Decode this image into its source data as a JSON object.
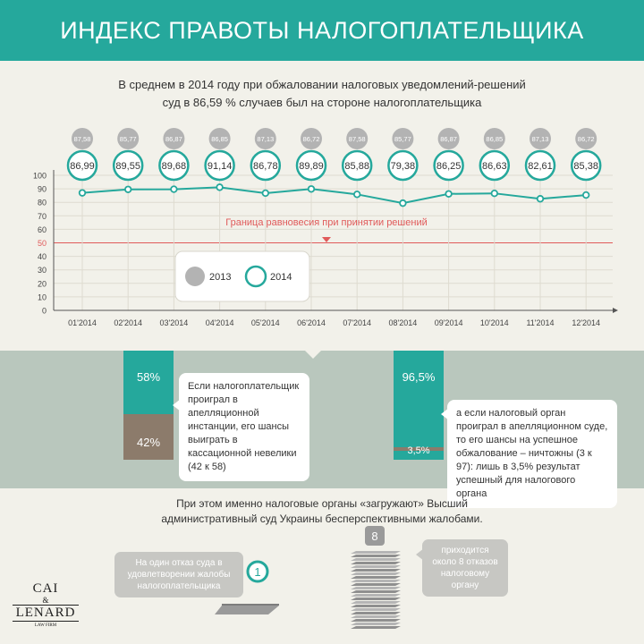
{
  "header": {
    "title": "ИНДЕКС ПРАВОТЫ НАЛОГОПЛАТЕЛЬЩИКА"
  },
  "subtitle": {
    "line1": "В среднем в 2014 году при обжаловании налоговых уведомлений-решений",
    "line2": "суд в 86,59 % случаев был на стороне налогоплательщика"
  },
  "colors": {
    "teal": "#25a89c",
    "gray": "#b3b3b3",
    "red": "#e05a5a",
    "brown": "#8c7b6b",
    "band": "#b9c7bd"
  },
  "chart_data": {
    "type": "line",
    "categories": [
      "01'2014",
      "02'2014",
      "03'2014",
      "04'2014",
      "05'2014",
      "06'2014",
      "07'2014",
      "08'2014",
      "09'2014",
      "10'2014",
      "11'2014",
      "12'2014"
    ],
    "series": [
      {
        "name": "2013",
        "labels": [
          "87,58",
          "85,77",
          "86,87",
          "86,85",
          "87,13",
          "86,72",
          "87,58",
          "85,77",
          "86,87",
          "86,85",
          "87,13",
          "86,72"
        ]
      },
      {
        "name": "2014",
        "values": [
          86.99,
          89.55,
          89.68,
          91.14,
          86.78,
          89.89,
          85.88,
          79.38,
          86.25,
          86.63,
          82.61,
          85.38
        ],
        "labels": [
          "86,99",
          "89,55",
          "89,68",
          "91,14",
          "86,78",
          "89,89",
          "85,88",
          "79,38",
          "86,25",
          "86,63",
          "82,61",
          "85,38"
        ]
      }
    ],
    "yticks": [
      "0",
      "10",
      "20",
      "30",
      "40",
      "50",
      "60",
      "70",
      "80",
      "90",
      "100"
    ],
    "ylim": [
      0,
      100
    ],
    "threshold": {
      "value": 50,
      "label": "Граница равновесия при принятии решений"
    },
    "legend": [
      "2013",
      "2014"
    ],
    "grid": true
  },
  "left_block": {
    "top_label": "58%",
    "top_value": 58,
    "bottom_label": "42%",
    "bottom_value": 42,
    "note": "Если налогоплательщик проиграл в апелляционной инстанции, его шансы выиграть в кассационной невелики (42 к 58)"
  },
  "right_block": {
    "top_label": "96,5%",
    "top_value": 96.5,
    "bottom_label": "3,5%",
    "bottom_value": 3.5,
    "note": "а если налоговый орган проиграл в апелляционном суде, то его шансы на успешное обжалование – ничтожны (3 к 97): лишь в 3,5% результат успешный для налогового органа"
  },
  "bottom": {
    "line1": "При этом именно налоговые органы «загружают» Высший",
    "line2": "административный суд Украины бесперспективными жалобами.",
    "left_note": "На один отказ суда в удовлетворении жалобы налогоплательщика",
    "left_badge": "1",
    "right_note": "приходится около 8 отказов налоговому органу",
    "right_badge": "8"
  },
  "logo": {
    "line1": "CAI",
    "amp": "&",
    "line2": "LENARD",
    "tagline": "LAW FIRM"
  }
}
